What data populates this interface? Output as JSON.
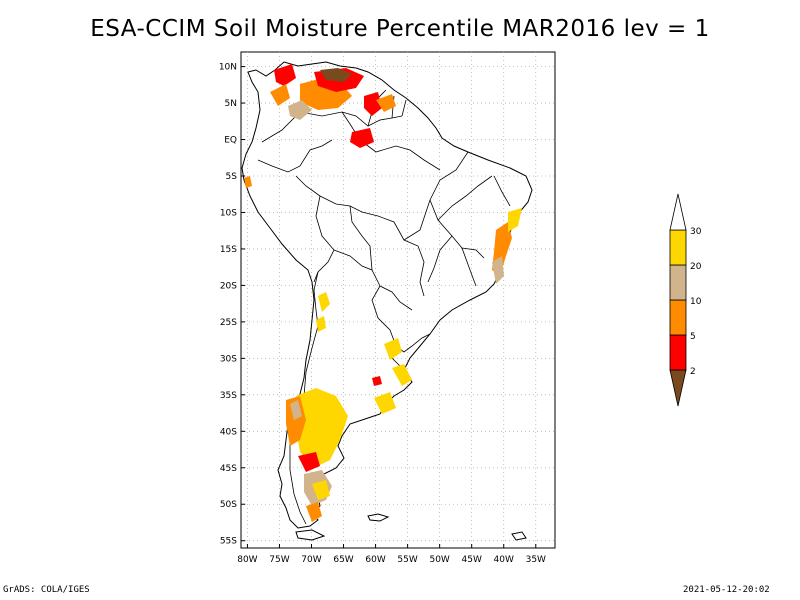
{
  "title": "ESA-CCIM Soil Moisture Percentile MAR2016 lev = 1",
  "footer": {
    "left": "GrADS: COLA/IGES",
    "right": "2021-05-12-20:02"
  },
  "map": {
    "projection": "lat-lon",
    "lon_range": [
      -81,
      -32
    ],
    "lat_range": [
      -56,
      12
    ],
    "grid": true,
    "lat_ticks": [
      {
        "value": 10,
        "label": "10N"
      },
      {
        "value": 5,
        "label": "5N"
      },
      {
        "value": 0,
        "label": "EQ"
      },
      {
        "value": -5,
        "label": "5S"
      },
      {
        "value": -10,
        "label": "10S"
      },
      {
        "value": -15,
        "label": "15S"
      },
      {
        "value": -20,
        "label": "20S"
      },
      {
        "value": -25,
        "label": "25S"
      },
      {
        "value": -30,
        "label": "30S"
      },
      {
        "value": -35,
        "label": "35S"
      },
      {
        "value": -40,
        "label": "40S"
      },
      {
        "value": -45,
        "label": "45S"
      },
      {
        "value": -50,
        "label": "50S"
      },
      {
        "value": -55,
        "label": "55S"
      }
    ],
    "lon_ticks": [
      {
        "value": -80,
        "label": "80W"
      },
      {
        "value": -75,
        "label": "75W"
      },
      {
        "value": -70,
        "label": "70W"
      },
      {
        "value": -65,
        "label": "65W"
      },
      {
        "value": -60,
        "label": "60W"
      },
      {
        "value": -55,
        "label": "55W"
      },
      {
        "value": -50,
        "label": "50W"
      },
      {
        "value": -45,
        "label": "45W"
      },
      {
        "value": -40,
        "label": "40W"
      },
      {
        "value": -35,
        "label": "35W"
      }
    ]
  },
  "colorbar": {
    "bins": [
      {
        "color": "#7a4a1e"
      },
      {
        "color": "#ff0000",
        "label": "2"
      },
      {
        "color": "#ff8c00",
        "label": "5"
      },
      {
        "color": "#d2b48c",
        "label": "10"
      },
      {
        "color": "#ffd700",
        "label": "20"
      },
      {
        "color": "#ffffff",
        "label": "30"
      }
    ]
  }
}
